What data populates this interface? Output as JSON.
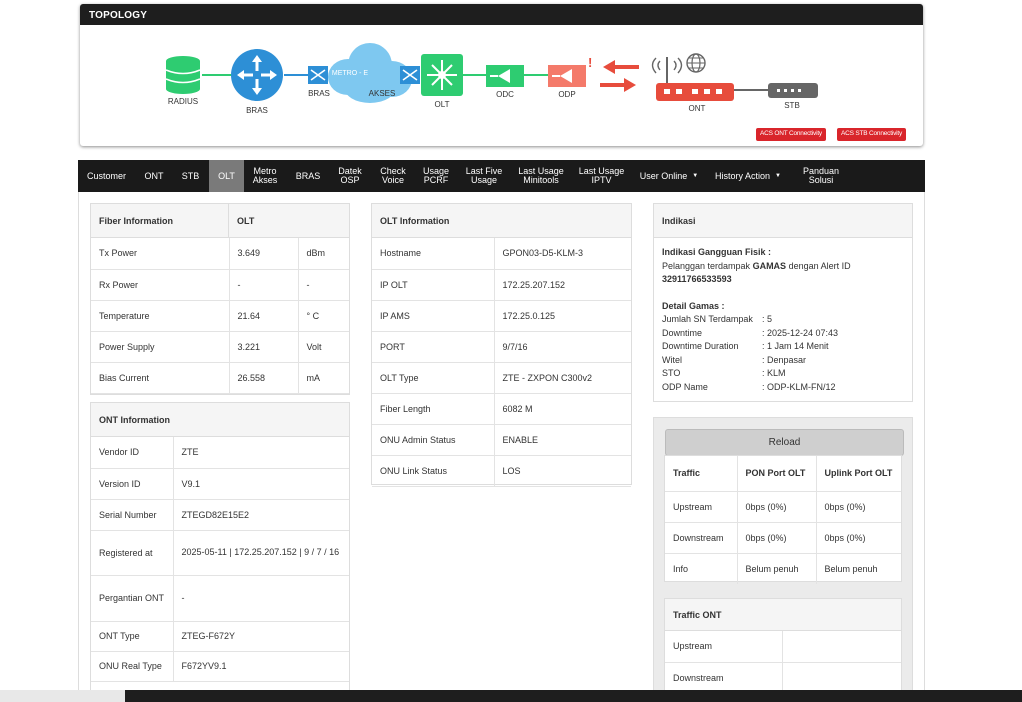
{
  "topology": {
    "title": "TOPOLOGY",
    "nodes": {
      "radius": "RADIUS",
      "bras": "BRAS",
      "bras2": "BRAS",
      "metro": "METRO - E",
      "akses": "AKSES",
      "olt": "OLT",
      "odc": "ODC",
      "odp": "ODP",
      "ont": "ONT",
      "stb": "STB"
    },
    "alert_mark": "!",
    "acs_ont": "ACS ONT Connectivity",
    "acs_stb": "ACS STB Connectivity",
    "colors": {
      "green": "#2ecc71",
      "blue": "#2d8fd6",
      "cloud": "#7ec8f0",
      "red": "#e74c3c",
      "salmon": "#f47a6a",
      "gray": "#666666"
    }
  },
  "tabs": [
    {
      "label": [
        "Customer"
      ]
    },
    {
      "label": [
        "ONT"
      ]
    },
    {
      "label": [
        "STB"
      ]
    },
    {
      "label": [
        "OLT"
      ],
      "active": true
    },
    {
      "label": [
        "Metro",
        "Akses"
      ]
    },
    {
      "label": [
        "BRAS"
      ]
    },
    {
      "label": [
        "Datek",
        "OSP"
      ]
    },
    {
      "label": [
        "Check",
        "Voice"
      ]
    },
    {
      "label": [
        "Usage",
        "PCRF"
      ]
    },
    {
      "label": [
        "Last Five",
        "Usage"
      ]
    },
    {
      "label": [
        "Last Usage",
        "Minitools"
      ]
    },
    {
      "label": [
        "Last Usage",
        "IPTV"
      ]
    },
    {
      "label": [
        "User Online"
      ],
      "dropdown": true
    },
    {
      "label": [
        "History Action"
      ],
      "dropdown": true
    },
    {
      "label": [
        "Panduan",
        "Solusi"
      ]
    }
  ],
  "fiber": {
    "header": "Fiber Information",
    "header2": "OLT",
    "rows": [
      {
        "label": "Tx Power",
        "value": "3.649",
        "unit": "dBm"
      },
      {
        "label": "Rx Power",
        "value": "-",
        "unit": "-"
      },
      {
        "label": "Temperature",
        "value": "21.64",
        "unit": "° C"
      },
      {
        "label": "Power Supply",
        "value": "3.221",
        "unit": "Volt"
      },
      {
        "label": "Bias Current",
        "value": "26.558",
        "unit": "mA"
      }
    ]
  },
  "ont_info": {
    "header": "ONT Information",
    "rows": [
      {
        "label": "Vendor ID",
        "value": "ZTE"
      },
      {
        "label": "Version ID",
        "value": "V9.1"
      },
      {
        "label": "Serial Number",
        "value": "ZTEGD82E15E2"
      },
      {
        "label": "Registered at",
        "value": "2025-05-11 | 172.25.207.152 | 9 / 7 / 16"
      },
      {
        "label": "Pergantian ONT",
        "value": "-"
      },
      {
        "label": "ONT Type",
        "value": "ZTEG-F672Y"
      },
      {
        "label": "ONU Real Type",
        "value": "F672YV9.1"
      }
    ]
  },
  "olt_info": {
    "header": "OLT Information",
    "rows": [
      {
        "label": "Hostname",
        "value": "GPON03-D5-KLM-3"
      },
      {
        "label": "IP OLT",
        "value": "172.25.207.152"
      },
      {
        "label": "IP AMS",
        "value": "172.25.0.125"
      },
      {
        "label": "PORT",
        "value": "9/7/16"
      },
      {
        "label": "OLT Type",
        "value": "ZTE - ZXPON C300v2"
      },
      {
        "label": "Fiber Length",
        "value": "6082 M"
      },
      {
        "label": "ONU Admin Status",
        "value": "ENABLE"
      },
      {
        "label": "ONU Link Status",
        "value": "LOS"
      }
    ]
  },
  "indikasi": {
    "header": "Indikasi",
    "title": "Indikasi Gangguan Fisik :",
    "line_prefix": "Pelanggan terdampak ",
    "line_bold": "GAMAS",
    "line_suffix": " dengan Alert ID",
    "alert_id": "32911766533593",
    "detail_title": "Detail Gamas :",
    "details": [
      {
        "k": "Jumlah SN Terdampak",
        "v": ": 5"
      },
      {
        "k": "Downtime",
        "v": ": 2025-12-24 07:43"
      },
      {
        "k": "Downtime Duration",
        "v": ": 1 Jam 14 Menit"
      },
      {
        "k": "Witel",
        "v": ": Denpasar"
      },
      {
        "k": "STO",
        "v": ": KLM"
      },
      {
        "k": "ODP Name",
        "v": ": ODP-KLM-FN/12"
      }
    ]
  },
  "traffic": {
    "reload": "Reload",
    "headers": [
      "Traffic",
      "PON Port OLT",
      "Uplink Port OLT"
    ],
    "rows": [
      [
        "Upstream",
        "0bps (0%)",
        "0bps (0%)"
      ],
      [
        "Downstream",
        "0bps (0%)",
        "0bps (0%)"
      ],
      [
        "Info",
        "Belum penuh",
        "Belum penuh"
      ]
    ]
  },
  "traffic_ont": {
    "header": "Traffic ONT",
    "rows": [
      "Upstream",
      "Downstream"
    ]
  }
}
